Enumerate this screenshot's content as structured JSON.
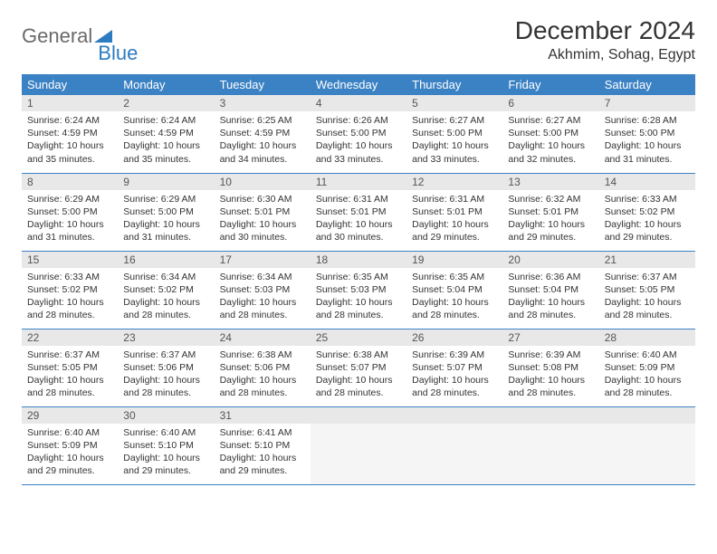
{
  "logo": {
    "text1": "General",
    "text2": "Blue"
  },
  "title": "December 2024",
  "location": "Akhmim, Sohag, Egypt",
  "colors": {
    "header_bg": "#3b82c4",
    "header_text": "#ffffff",
    "daynum_bg": "#e8e8e8",
    "border": "#3b82c4",
    "logo_gray": "#6a6a6a",
    "logo_blue": "#2d7bc0"
  },
  "weekdays": [
    "Sunday",
    "Monday",
    "Tuesday",
    "Wednesday",
    "Thursday",
    "Friday",
    "Saturday"
  ],
  "weeks": [
    [
      {
        "n": "1",
        "sr": "Sunrise: 6:24 AM",
        "ss": "Sunset: 4:59 PM",
        "dl": "Daylight: 10 hours and 35 minutes."
      },
      {
        "n": "2",
        "sr": "Sunrise: 6:24 AM",
        "ss": "Sunset: 4:59 PM",
        "dl": "Daylight: 10 hours and 35 minutes."
      },
      {
        "n": "3",
        "sr": "Sunrise: 6:25 AM",
        "ss": "Sunset: 4:59 PM",
        "dl": "Daylight: 10 hours and 34 minutes."
      },
      {
        "n": "4",
        "sr": "Sunrise: 6:26 AM",
        "ss": "Sunset: 5:00 PM",
        "dl": "Daylight: 10 hours and 33 minutes."
      },
      {
        "n": "5",
        "sr": "Sunrise: 6:27 AM",
        "ss": "Sunset: 5:00 PM",
        "dl": "Daylight: 10 hours and 33 minutes."
      },
      {
        "n": "6",
        "sr": "Sunrise: 6:27 AM",
        "ss": "Sunset: 5:00 PM",
        "dl": "Daylight: 10 hours and 32 minutes."
      },
      {
        "n": "7",
        "sr": "Sunrise: 6:28 AM",
        "ss": "Sunset: 5:00 PM",
        "dl": "Daylight: 10 hours and 31 minutes."
      }
    ],
    [
      {
        "n": "8",
        "sr": "Sunrise: 6:29 AM",
        "ss": "Sunset: 5:00 PM",
        "dl": "Daylight: 10 hours and 31 minutes."
      },
      {
        "n": "9",
        "sr": "Sunrise: 6:29 AM",
        "ss": "Sunset: 5:00 PM",
        "dl": "Daylight: 10 hours and 31 minutes."
      },
      {
        "n": "10",
        "sr": "Sunrise: 6:30 AM",
        "ss": "Sunset: 5:01 PM",
        "dl": "Daylight: 10 hours and 30 minutes."
      },
      {
        "n": "11",
        "sr": "Sunrise: 6:31 AM",
        "ss": "Sunset: 5:01 PM",
        "dl": "Daylight: 10 hours and 30 minutes."
      },
      {
        "n": "12",
        "sr": "Sunrise: 6:31 AM",
        "ss": "Sunset: 5:01 PM",
        "dl": "Daylight: 10 hours and 29 minutes."
      },
      {
        "n": "13",
        "sr": "Sunrise: 6:32 AM",
        "ss": "Sunset: 5:01 PM",
        "dl": "Daylight: 10 hours and 29 minutes."
      },
      {
        "n": "14",
        "sr": "Sunrise: 6:33 AM",
        "ss": "Sunset: 5:02 PM",
        "dl": "Daylight: 10 hours and 29 minutes."
      }
    ],
    [
      {
        "n": "15",
        "sr": "Sunrise: 6:33 AM",
        "ss": "Sunset: 5:02 PM",
        "dl": "Daylight: 10 hours and 28 minutes."
      },
      {
        "n": "16",
        "sr": "Sunrise: 6:34 AM",
        "ss": "Sunset: 5:02 PM",
        "dl": "Daylight: 10 hours and 28 minutes."
      },
      {
        "n": "17",
        "sr": "Sunrise: 6:34 AM",
        "ss": "Sunset: 5:03 PM",
        "dl": "Daylight: 10 hours and 28 minutes."
      },
      {
        "n": "18",
        "sr": "Sunrise: 6:35 AM",
        "ss": "Sunset: 5:03 PM",
        "dl": "Daylight: 10 hours and 28 minutes."
      },
      {
        "n": "19",
        "sr": "Sunrise: 6:35 AM",
        "ss": "Sunset: 5:04 PM",
        "dl": "Daylight: 10 hours and 28 minutes."
      },
      {
        "n": "20",
        "sr": "Sunrise: 6:36 AM",
        "ss": "Sunset: 5:04 PM",
        "dl": "Daylight: 10 hours and 28 minutes."
      },
      {
        "n": "21",
        "sr": "Sunrise: 6:37 AM",
        "ss": "Sunset: 5:05 PM",
        "dl": "Daylight: 10 hours and 28 minutes."
      }
    ],
    [
      {
        "n": "22",
        "sr": "Sunrise: 6:37 AM",
        "ss": "Sunset: 5:05 PM",
        "dl": "Daylight: 10 hours and 28 minutes."
      },
      {
        "n": "23",
        "sr": "Sunrise: 6:37 AM",
        "ss": "Sunset: 5:06 PM",
        "dl": "Daylight: 10 hours and 28 minutes."
      },
      {
        "n": "24",
        "sr": "Sunrise: 6:38 AM",
        "ss": "Sunset: 5:06 PM",
        "dl": "Daylight: 10 hours and 28 minutes."
      },
      {
        "n": "25",
        "sr": "Sunrise: 6:38 AM",
        "ss": "Sunset: 5:07 PM",
        "dl": "Daylight: 10 hours and 28 minutes."
      },
      {
        "n": "26",
        "sr": "Sunrise: 6:39 AM",
        "ss": "Sunset: 5:07 PM",
        "dl": "Daylight: 10 hours and 28 minutes."
      },
      {
        "n": "27",
        "sr": "Sunrise: 6:39 AM",
        "ss": "Sunset: 5:08 PM",
        "dl": "Daylight: 10 hours and 28 minutes."
      },
      {
        "n": "28",
        "sr": "Sunrise: 6:40 AM",
        "ss": "Sunset: 5:09 PM",
        "dl": "Daylight: 10 hours and 28 minutes."
      }
    ],
    [
      {
        "n": "29",
        "sr": "Sunrise: 6:40 AM",
        "ss": "Sunset: 5:09 PM",
        "dl": "Daylight: 10 hours and 29 minutes."
      },
      {
        "n": "30",
        "sr": "Sunrise: 6:40 AM",
        "ss": "Sunset: 5:10 PM",
        "dl": "Daylight: 10 hours and 29 minutes."
      },
      {
        "n": "31",
        "sr": "Sunrise: 6:41 AM",
        "ss": "Sunset: 5:10 PM",
        "dl": "Daylight: 10 hours and 29 minutes."
      },
      null,
      null,
      null,
      null
    ]
  ]
}
